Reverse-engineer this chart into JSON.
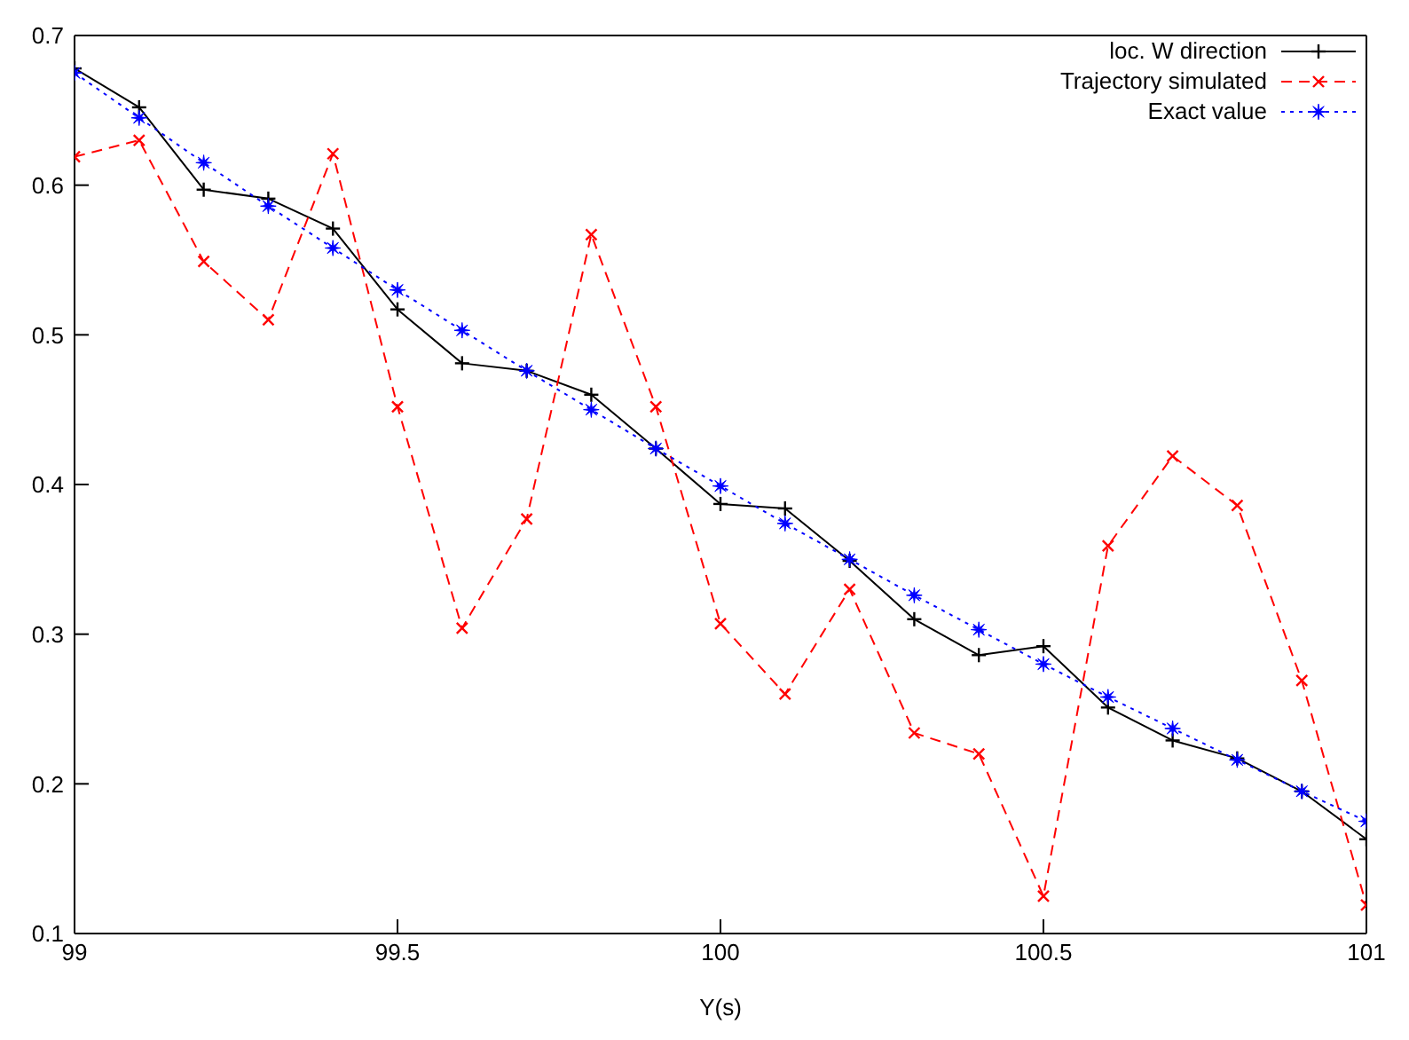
{
  "chart_data": {
    "type": "line",
    "xlabel": "Y(s)",
    "x": [
      99,
      99.1,
      99.2,
      99.3,
      99.4,
      99.5,
      99.6,
      99.7,
      99.8,
      99.9,
      100,
      100.1,
      100.2,
      100.3,
      100.4,
      100.5,
      100.6,
      100.7,
      100.8,
      100.9,
      101
    ],
    "series": [
      {
        "name": "loc. W direction",
        "color": "#000000",
        "marker": "plus",
        "line_style": "solid",
        "values": [
          0.678,
          0.652,
          0.597,
          0.591,
          0.571,
          0.517,
          0.481,
          0.476,
          0.46,
          0.424,
          0.387,
          0.384,
          0.349,
          0.31,
          0.286,
          0.292,
          0.251,
          0.229,
          0.217,
          0.195,
          0.163
        ]
      },
      {
        "name": "Trajectory simulated",
        "color": "#ff0000",
        "marker": "cross",
        "line_style": "dashed",
        "values": [
          0.619,
          0.63,
          0.549,
          0.51,
          0.621,
          0.452,
          0.304,
          0.377,
          0.567,
          0.452,
          0.307,
          0.26,
          0.33,
          0.234,
          0.22,
          0.125,
          0.359,
          0.419,
          0.386,
          0.269,
          0.119
        ]
      },
      {
        "name": "Exact value",
        "color": "#0000ff",
        "marker": "star",
        "line_style": "dotted",
        "values": [
          0.675,
          0.645,
          0.615,
          0.586,
          0.558,
          0.53,
          0.503,
          0.476,
          0.45,
          0.424,
          0.399,
          0.374,
          0.35,
          0.326,
          0.303,
          0.28,
          0.258,
          0.237,
          0.216,
          0.195,
          0.175
        ]
      }
    ],
    "xlim": [
      99,
      101
    ],
    "xticks": [
      99,
      99.5,
      100,
      100.5,
      101
    ],
    "ylim": [
      0.1,
      0.7
    ],
    "yticks": [
      0.1,
      0.2,
      0.3,
      0.4,
      0.5,
      0.6,
      0.7
    ],
    "grid": false,
    "legend": "top right"
  }
}
